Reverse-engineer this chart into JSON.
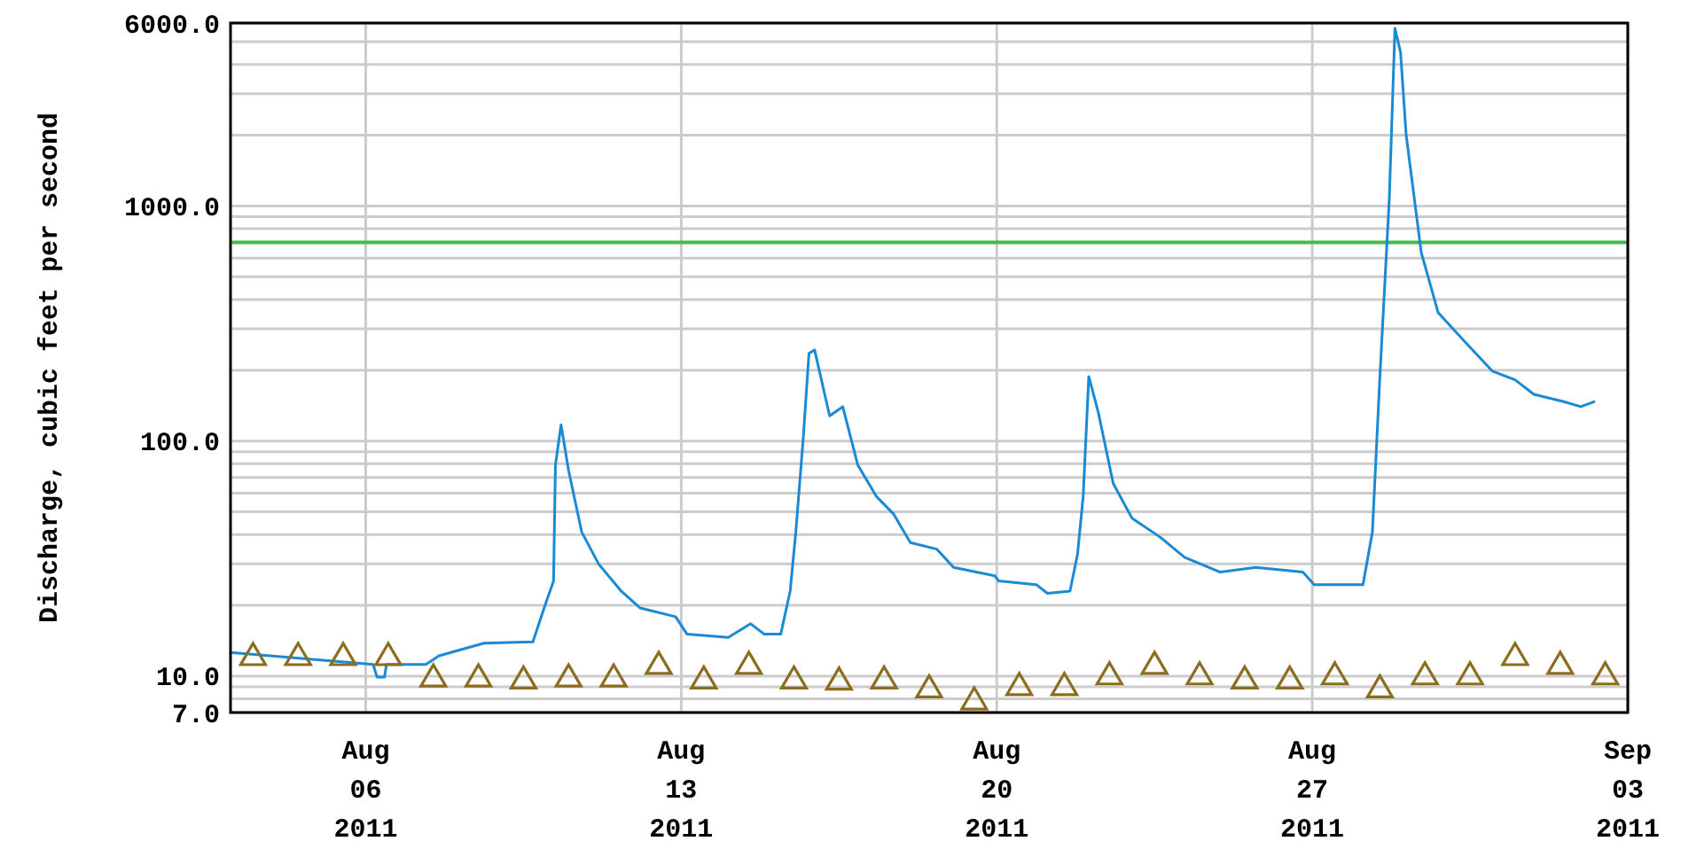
{
  "chart_data": {
    "type": "line",
    "ylabel": "Discharge, cubic feet per second",
    "log": "y",
    "grid": true,
    "xlim": [
      "2011-08-03T00:00",
      "2011-09-03T00:00"
    ],
    "xticks": [
      {
        "value": "2011-08-06",
        "label": "Aug 06 2011"
      },
      {
        "value": "2011-08-13",
        "label": "Aug 13 2011"
      },
      {
        "value": "2011-08-20",
        "label": "Aug 20 2011"
      },
      {
        "value": "2011-08-27",
        "label": "Aug 27 2011"
      },
      {
        "value": "2011-09-03",
        "label": "Sep 03 2011"
      }
    ],
    "ylim": [
      7,
      6000
    ],
    "yticks": [
      {
        "value": 7,
        "label": "7.0"
      },
      {
        "value": 8,
        "label": null
      },
      {
        "value": 9,
        "label": null
      },
      {
        "value": 10,
        "label": "10.0"
      },
      {
        "value": 20,
        "label": null
      },
      {
        "value": 30,
        "label": null
      },
      {
        "value": 40,
        "label": null
      },
      {
        "value": 50,
        "label": null
      },
      {
        "value": 60,
        "label": null
      },
      {
        "value": 70,
        "label": null
      },
      {
        "value": 80,
        "label": null
      },
      {
        "value": 90,
        "label": null
      },
      {
        "value": 100,
        "label": "100.0"
      },
      {
        "value": 200,
        "label": null
      },
      {
        "value": 300,
        "label": null
      },
      {
        "value": 400,
        "label": null
      },
      {
        "value": 500,
        "label": null
      },
      {
        "value": 600,
        "label": null
      },
      {
        "value": 700,
        "label": null
      },
      {
        "value": 800,
        "label": null
      },
      {
        "value": 900,
        "label": null
      },
      {
        "value": 1000,
        "label": "1000.0"
      },
      {
        "value": 2000,
        "label": null
      },
      {
        "value": 3000,
        "label": null
      },
      {
        "value": 4000,
        "label": null
      },
      {
        "value": 5000,
        "label": null
      },
      {
        "value": 6000,
        "label": "6000.0"
      }
    ],
    "ref_lines": [
      {
        "axis": "y",
        "value": 700,
        "color": "#44bb44"
      }
    ],
    "series": [
      {
        "color": "#1a8ad4",
        "line_style": "solid",
        "marker": "none",
        "x": [
          "2011-08-03T00:00",
          "2011-08-06T04:00",
          "2011-08-06T06:00",
          "2011-08-06T10:00",
          "2011-08-06T11:00",
          "2011-08-07T08:00",
          "2011-08-07T15:00",
          "2011-08-08T15:00",
          "2011-08-09T17:00",
          "2011-08-09T23:00",
          "2011-08-10T04:00",
          "2011-08-10T05:00",
          "2011-08-10T08:00",
          "2011-08-10T12:00",
          "2011-08-10T19:00",
          "2011-08-11T04:00",
          "2011-08-11T16:00",
          "2011-08-12T02:00",
          "2011-08-12T21:00",
          "2011-08-13T03:00",
          "2011-08-14T01:00",
          "2011-08-14T13:00",
          "2011-08-14T20:00",
          "2011-08-15T05:00",
          "2011-08-15T10:00",
          "2011-08-15T13:00",
          "2011-08-15T17:00",
          "2011-08-15T20:00",
          "2011-08-15T23:00",
          "2011-08-16T07:00",
          "2011-08-16T14:00",
          "2011-08-16T22:00",
          "2011-08-17T08:00",
          "2011-08-17T17:00",
          "2011-08-18T02:00",
          "2011-08-18T16:00",
          "2011-08-19T01:00",
          "2011-08-19T23:00",
          "2011-08-20T01:00",
          "2011-08-20T21:00",
          "2011-08-21T03:00",
          "2011-08-21T15:00",
          "2011-08-21T19:00",
          "2011-08-21T22:00",
          "2011-08-22T01:00",
          "2011-08-22T06:00",
          "2011-08-22T14:00",
          "2011-08-23T00:00",
          "2011-08-23T15:00",
          "2011-08-24T04:00",
          "2011-08-24T23:00",
          "2011-08-25T18:00",
          "2011-08-26T19:00",
          "2011-08-27T01:00",
          "2011-08-28T03:00",
          "2011-08-28T08:00",
          "2011-08-28T12:00",
          "2011-08-28T17:00",
          "2011-08-28T20:00",
          "2011-08-28T23:00",
          "2011-08-29T02:00",
          "2011-08-29T10:00",
          "2011-08-29T19:00",
          "2011-08-30T08:00",
          "2011-08-31T00:00",
          "2011-08-31T12:00",
          "2011-08-31T22:00",
          "2011-09-01T14:00",
          "2011-09-01T23:00",
          "2011-09-02T06:00"
        ],
        "values": [
          12.6,
          11.2,
          9.9,
          9.9,
          11.2,
          11.2,
          12.2,
          13.8,
          14,
          19.5,
          25.4,
          79,
          117,
          75,
          41,
          30,
          23,
          19.5,
          17.9,
          15.1,
          14.6,
          16.7,
          15.1,
          15.1,
          23,
          41,
          104,
          236,
          244,
          128,
          140,
          79,
          58,
          49,
          37,
          34.7,
          29,
          26.7,
          25.4,
          24.5,
          22.5,
          23,
          33,
          58,
          188,
          133,
          66,
          47,
          39,
          32,
          27.7,
          29,
          27.7,
          24.5,
          24.5,
          41,
          188,
          1070,
          5700,
          4500,
          2000,
          635,
          352,
          271,
          198,
          182,
          158,
          147,
          140,
          147
        ]
      },
      {
        "type": "scatter",
        "color": "#8c6d1f",
        "marker": "triangle",
        "x": [
          "2011-08-03T12:00",
          "2011-08-04T12:00",
          "2011-08-05T12:00",
          "2011-08-06T12:00",
          "2011-08-07T12:00",
          "2011-08-08T12:00",
          "2011-08-09T12:00",
          "2011-08-10T12:00",
          "2011-08-11T12:00",
          "2011-08-12T12:00",
          "2011-08-13T12:00",
          "2011-08-14T12:00",
          "2011-08-15T12:00",
          "2011-08-16T12:00",
          "2011-08-17T12:00",
          "2011-08-18T12:00",
          "2011-08-19T12:00",
          "2011-08-20T12:00",
          "2011-08-21T12:00",
          "2011-08-22T12:00",
          "2011-08-23T12:00",
          "2011-08-24T12:00",
          "2011-08-25T12:00",
          "2011-08-26T12:00",
          "2011-08-27T12:00",
          "2011-08-28T12:00",
          "2011-08-29T12:00",
          "2011-08-30T12:00",
          "2011-08-31T12:00",
          "2011-09-01T12:00",
          "2011-09-02T12:00"
        ],
        "values": [
          12.2,
          12.2,
          12.2,
          12.2,
          9.9,
          9.9,
          9.7,
          9.9,
          9.9,
          11.2,
          9.7,
          11.2,
          9.7,
          9.6,
          9.7,
          8.9,
          7.9,
          9.1,
          9.1,
          10.1,
          11.2,
          10.1,
          9.7,
          9.7,
          10.1,
          8.9,
          10.1,
          10.1,
          12.2,
          11.2,
          10.1
        ]
      }
    ]
  }
}
